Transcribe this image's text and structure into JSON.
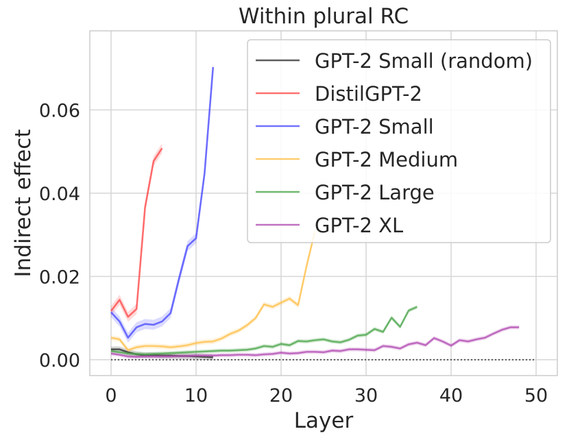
{
  "chart_data": {
    "type": "line",
    "title": "Within plural RC",
    "xlabel": "Layer",
    "ylabel": "Indirect effect",
    "xlim": [
      -2.5,
      52.5
    ],
    "ylim": [
      -0.0038,
      0.079
    ],
    "xticks": [
      0,
      10,
      20,
      30,
      40,
      50
    ],
    "yticks": [
      0.0,
      0.02,
      0.04,
      0.06
    ],
    "xtick_labels": [
      "0",
      "10",
      "20",
      "30",
      "40",
      "50"
    ],
    "ytick_labels": [
      "0.00",
      "0.02",
      "0.04",
      "0.06"
    ],
    "grid": true,
    "legend_position": "top-right",
    "baseline": {
      "y": 0.0,
      "x_range": [
        0,
        50
      ],
      "style": "dotted",
      "color": "#555555"
    },
    "series": [
      {
        "name": "GPT-2 Small (random)",
        "color": "#333333",
        "x": [
          0,
          1,
          2,
          3,
          4,
          5,
          6,
          7,
          8,
          9,
          10,
          11,
          12
        ],
        "y": [
          0.0025,
          0.0025,
          0.0018,
          0.0013,
          0.0011,
          0.0011,
          0.001,
          0.001,
          0.0009,
          0.0009,
          0.0008,
          0.0007,
          0.0006
        ],
        "err": 0.0007
      },
      {
        "name": "DistilGPT-2",
        "color": "#ff4d4d",
        "x": [
          0,
          1,
          2,
          3,
          4,
          5,
          6
        ],
        "y": [
          0.0117,
          0.0144,
          0.0103,
          0.0122,
          0.0366,
          0.0477,
          0.0508
        ],
        "err": 0.0012
      },
      {
        "name": "GPT-2 Small",
        "color": "#4d4dff",
        "x": [
          0,
          1,
          2,
          3,
          4,
          5,
          6,
          7,
          8,
          9,
          10,
          11,
          12
        ],
        "y": [
          0.0114,
          0.0092,
          0.0053,
          0.0078,
          0.0086,
          0.0084,
          0.0092,
          0.0112,
          0.0195,
          0.0273,
          0.0292,
          0.0448,
          0.0703
        ],
        "err": 0.0012
      },
      {
        "name": "GPT-2 Medium",
        "color": "#ffc04d",
        "x": [
          0,
          1,
          2,
          3,
          4,
          5,
          6,
          7,
          8,
          9,
          10,
          11,
          12,
          13,
          14,
          15,
          16,
          17,
          18,
          19,
          20,
          21,
          22,
          23,
          24
        ],
        "y": [
          0.0053,
          0.0049,
          0.0023,
          0.003,
          0.0033,
          0.0033,
          0.0032,
          0.003,
          0.0032,
          0.0035,
          0.004,
          0.0043,
          0.0044,
          0.0051,
          0.0062,
          0.007,
          0.0083,
          0.01,
          0.0133,
          0.0127,
          0.0137,
          0.0147,
          0.0131,
          0.0225,
          0.031
        ],
        "err": 0.0006
      },
      {
        "name": "GPT-2 Large",
        "color": "#4da64d",
        "x": [
          0,
          1,
          2,
          3,
          4,
          5,
          6,
          7,
          8,
          9,
          10,
          11,
          12,
          13,
          14,
          15,
          16,
          17,
          18,
          19,
          20,
          21,
          22,
          23,
          24,
          25,
          26,
          27,
          28,
          29,
          30,
          31,
          32,
          33,
          34,
          35,
          36
        ],
        "y": [
          0.0021,
          0.0018,
          0.0015,
          0.0014,
          0.0013,
          0.0014,
          0.0015,
          0.0016,
          0.0017,
          0.0018,
          0.0019,
          0.002,
          0.0021,
          0.0022,
          0.0022,
          0.0023,
          0.0024,
          0.0027,
          0.0033,
          0.0031,
          0.0038,
          0.0035,
          0.0045,
          0.0044,
          0.0047,
          0.0049,
          0.0044,
          0.0042,
          0.0048,
          0.0058,
          0.006,
          0.0074,
          0.0067,
          0.0101,
          0.0079,
          0.0118,
          0.0127
        ],
        "err": 0.0005
      },
      {
        "name": "GPT-2 XL",
        "color": "#b34db3",
        "x": [
          0,
          1,
          2,
          3,
          4,
          5,
          6,
          7,
          8,
          9,
          10,
          11,
          12,
          13,
          14,
          15,
          16,
          17,
          18,
          19,
          20,
          21,
          22,
          23,
          24,
          25,
          26,
          27,
          28,
          29,
          30,
          31,
          32,
          33,
          34,
          35,
          36,
          37,
          38,
          39,
          40,
          41,
          42,
          43,
          44,
          45,
          46,
          47,
          48
        ],
        "y": [
          0.0015,
          0.0012,
          0.0008,
          0.0007,
          0.0008,
          0.0008,
          0.0008,
          0.0008,
          0.0009,
          0.0009,
          0.001,
          0.001,
          0.001,
          0.0011,
          0.0011,
          0.0012,
          0.0012,
          0.0011,
          0.0013,
          0.0014,
          0.0017,
          0.0015,
          0.0016,
          0.0019,
          0.0019,
          0.0018,
          0.0022,
          0.0021,
          0.0025,
          0.0025,
          0.0024,
          0.0023,
          0.0033,
          0.0031,
          0.0027,
          0.0037,
          0.0041,
          0.0035,
          0.0052,
          0.0044,
          0.0034,
          0.0047,
          0.0044,
          0.0049,
          0.0053,
          0.0063,
          0.0072,
          0.0078,
          0.0078
        ],
        "err": 0.0005
      }
    ]
  }
}
